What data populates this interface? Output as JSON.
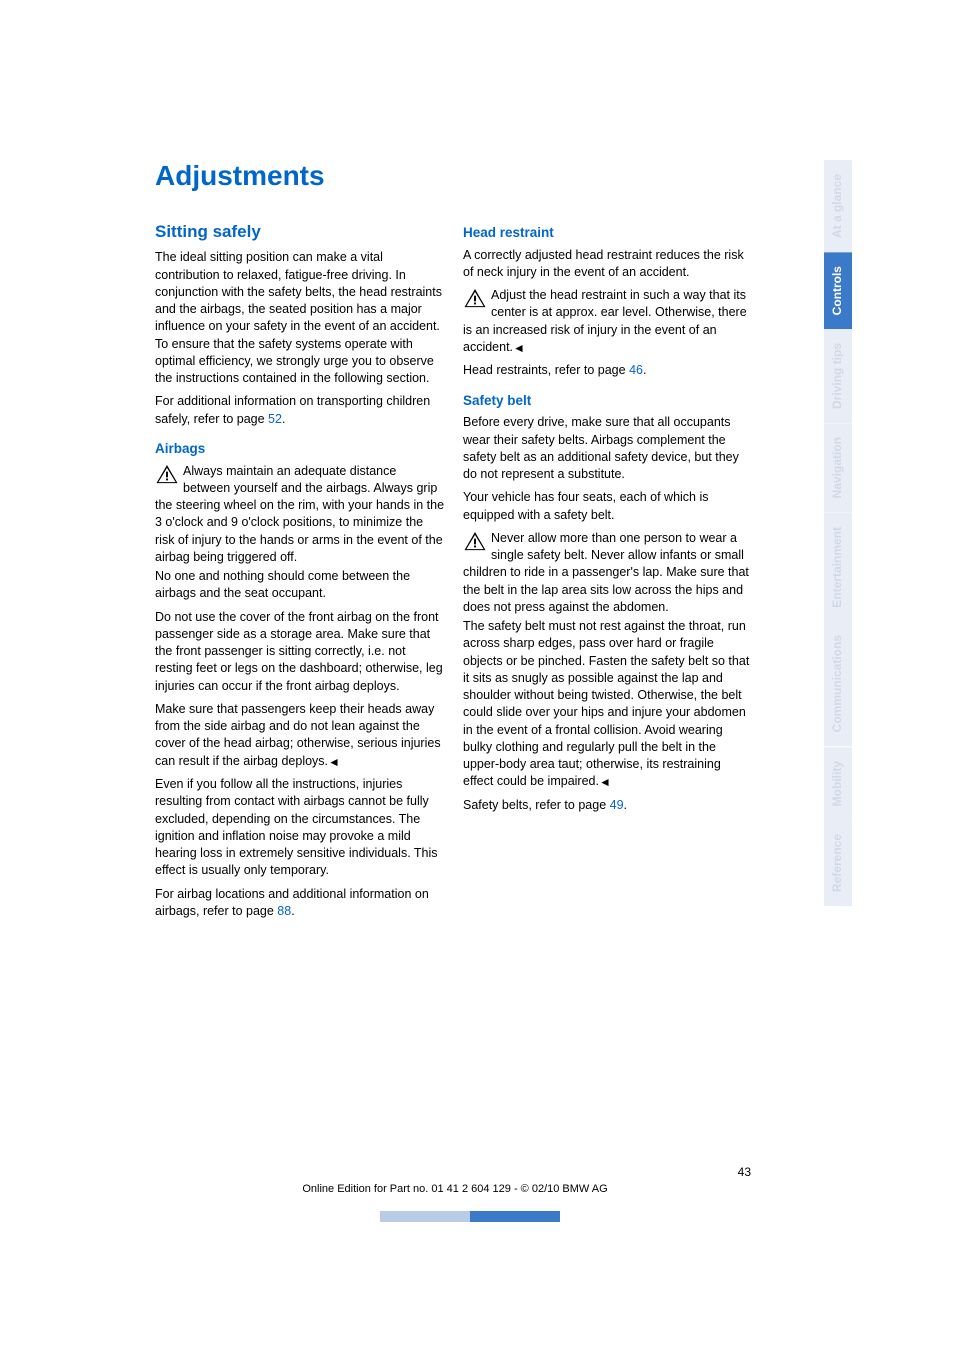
{
  "title": "Adjustments",
  "section1": {
    "heading": "Sitting safely",
    "p1": "The ideal sitting position can make a vital contribution to relaxed, fatigue-free driving. In conjunction with the safety belts, the head restraints and the airbags, the seated position has a major influence on your safety in the event of an accident. To ensure that the safety systems operate with optimal efficiency, we strongly urge you to observe the instructions contained in the following section.",
    "p2a": "For additional information on transporting children safely, refer to page ",
    "p2link": "52",
    "p2b": "."
  },
  "airbags": {
    "heading": "Airbags",
    "warn": "Always maintain an adequate distance between yourself and the airbags. Always grip the steering wheel on the rim, with your hands in the 3 o'clock and 9 o'clock positions, to minimize the risk of injury to the hands or arms in the event of the airbag being triggered off.",
    "p2": "No one and nothing should come between the airbags and the seat occupant.",
    "p3": "Do not use the cover of the front airbag on the front passenger side as a storage area. Make sure that the front passenger is sitting correctly, i.e. not resting feet or legs on the dashboard; otherwise, leg injuries can occur if the front airbag deploys.",
    "p4": "Make sure that passengers keep their heads away from the side airbag and do not lean against the cover of the head airbag; otherwise, serious injuries can result if the airbag deploys.",
    "p5": "Even if you follow all the instructions, injuries resulting from contact with airbags cannot be fully excluded, depending on the circumstances. The ignition and inflation noise may provoke a mild hearing loss in extremely sensitive individuals. This effect is usually only temporary.",
    "p6a": "For airbag locations and additional information on airbags, refer to page ",
    "p6link": "88",
    "p6b": "."
  },
  "headrest": {
    "heading": "Head restraint",
    "p1": "A correctly adjusted head restraint reduces the risk of neck injury in the event of an accident.",
    "warn": "Adjust the head restraint in such a way that its center is at approx. ear level. Otherwise, there is an increased risk of injury in the event of an accident.",
    "p3a": "Head restraints, refer to page ",
    "p3link": "46",
    "p3b": "."
  },
  "safetybelt": {
    "heading": "Safety belt",
    "p1": "Before every drive, make sure that all occupants wear their safety belts. Airbags complement the safety belt as an additional safety device, but they do not represent a substitute.",
    "p2": "Your vehicle has four seats, each of which is equipped with a safety belt.",
    "warn": "Never allow more than one person to wear a single safety belt. Never allow infants or small children to ride in a passenger's lap. Make sure that the belt in the lap area sits low across the hips and does not press against the abdomen.",
    "p4": "The safety belt must not rest against the throat, run across sharp edges, pass over hard or fragile objects or be pinched. Fasten the safety belt so that it sits as snugly as possible against the lap and shoulder without being twisted. Otherwise, the belt could slide over your hips and injure your abdomen in the event of a frontal collision. Avoid wearing bulky clothing and regularly pull the belt in the upper-body area taut; otherwise, its restraining effect could be impaired.",
    "p5a": "Safety belts, refer to page ",
    "p5link": "49",
    "p5b": "."
  },
  "tabs": {
    "items": [
      "At a glance",
      "Controls",
      "Driving tips",
      "Navigation",
      "Entertainment",
      "Communications",
      "Mobility",
      "Reference"
    ],
    "active_index": 1,
    "active_bg": "#3a7ac8",
    "active_fg": "#ffffff",
    "faded_bg": "#e9eef6",
    "faded_fg": "#cfd9e8"
  },
  "footer": {
    "page": "43",
    "line": "Online Edition for Part no. 01 41 2 604 129 - © 02/10 BMW AG"
  },
  "colors": {
    "link": "#0066cc",
    "bottom_bar_light": "#b8cce8",
    "bottom_bar_dark": "#3a7ac8"
  }
}
